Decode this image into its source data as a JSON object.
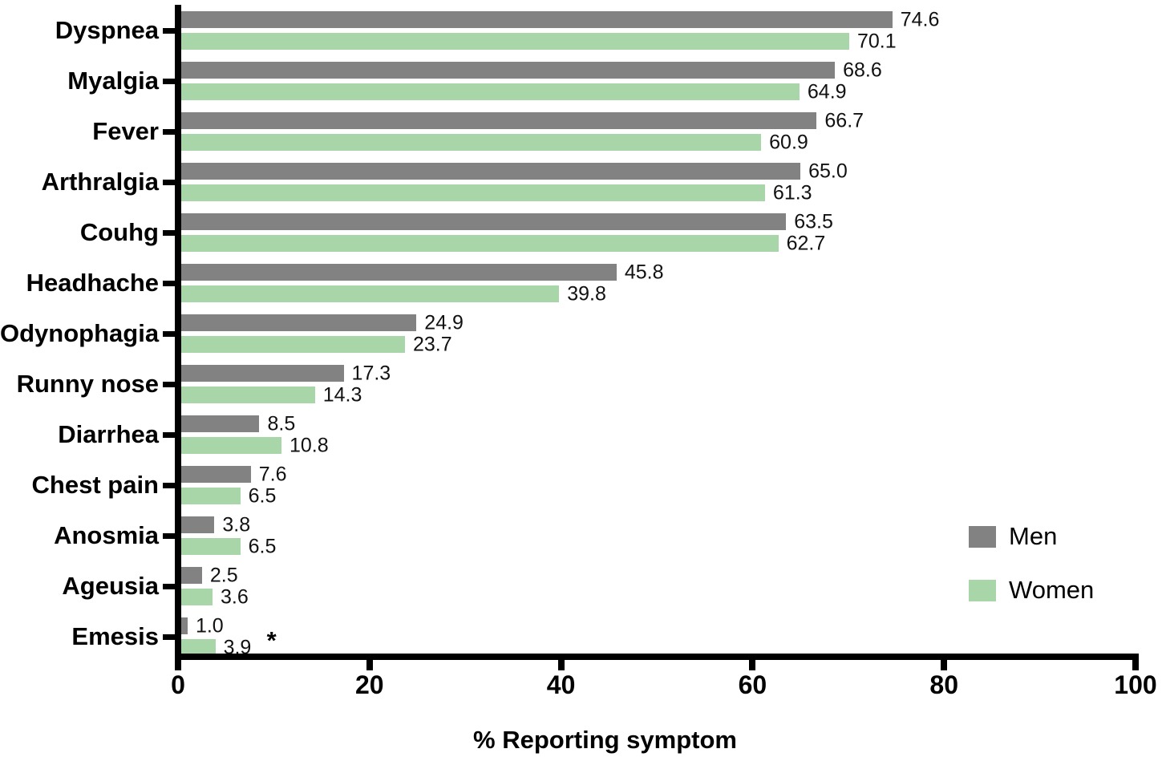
{
  "chart_data": {
    "type": "bar",
    "orientation": "horizontal",
    "title": "",
    "xlabel": "% Reporting symptom",
    "ylabel": "",
    "xlim": [
      0,
      100
    ],
    "xticks": [
      0,
      20,
      40,
      60,
      80,
      100
    ],
    "grid": false,
    "legend_position": "inside-lower-right",
    "value_labels": true,
    "value_label_decimals": 1,
    "categories": [
      "Dyspnea",
      "Myalgia",
      "Fever",
      "Arthralgia",
      "Couhg",
      "Headhache",
      "Odynophagia",
      "Runny nose",
      "Diarrhea",
      "Chest pain",
      "Anosmia",
      "Ageusia",
      "Emesis"
    ],
    "series": [
      {
        "name": "Men",
        "color": "#828282",
        "values": [
          74.6,
          68.6,
          66.7,
          65.0,
          63.5,
          45.8,
          24.9,
          17.3,
          8.5,
          7.6,
          3.8,
          2.5,
          1.0
        ]
      },
      {
        "name": "Women",
        "color": "#a8d6a8",
        "values": [
          70.1,
          64.9,
          60.9,
          61.3,
          62.7,
          39.8,
          23.7,
          14.3,
          10.8,
          6.5,
          6.5,
          3.6,
          3.9
        ]
      }
    ],
    "annotations": [
      {
        "text": "*",
        "category": "Emesis",
        "series": "Women"
      }
    ],
    "axis_color": "#000000",
    "background_color": "#ffffff"
  }
}
